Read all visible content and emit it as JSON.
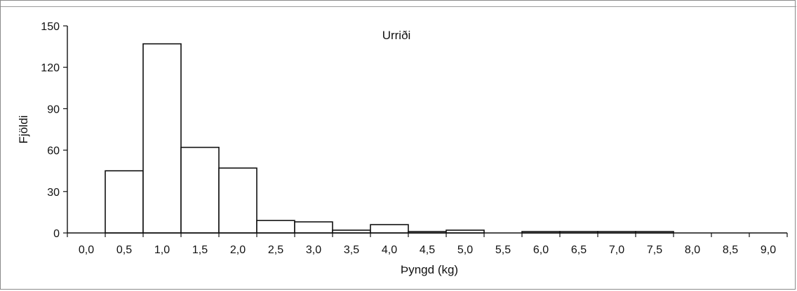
{
  "chart_data": {
    "type": "bar",
    "title": "Urriði",
    "xlabel": "Þyngd (kg)",
    "ylabel": "Fjöldi",
    "categories": [
      "0,0",
      "0,5",
      "1,0",
      "1,5",
      "2,0",
      "2,5",
      "3,0",
      "3,5",
      "4,0",
      "4,5",
      "5,0",
      "5,5",
      "6,0",
      "6,5",
      "7,0",
      "7,5",
      "8,0",
      "8,5",
      "9,0"
    ],
    "values": [
      0,
      45,
      137,
      62,
      47,
      9,
      8,
      2,
      6,
      1,
      2,
      0,
      1,
      1,
      1,
      1,
      0,
      0,
      0
    ],
    "y_ticks": [
      "0",
      "30",
      "60",
      "90",
      "120",
      "150"
    ],
    "ylim": [
      0,
      150
    ],
    "grid": false,
    "legend": "none",
    "bar_fill": "#ffffff",
    "bar_stroke": "#111111"
  }
}
